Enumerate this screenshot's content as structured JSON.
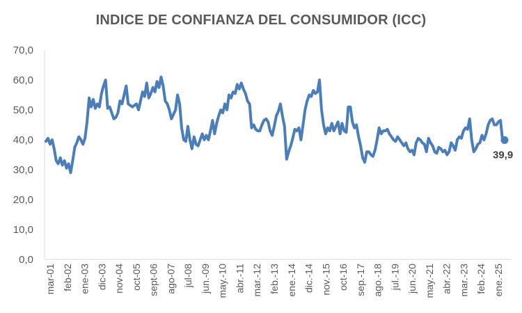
{
  "chart_data": {
    "type": "line",
    "title": "INDICE DE CONFIANZA DEL CONSUMIDOR (ICC)",
    "xlabel": "",
    "ylabel": "",
    "ylim": [
      0,
      70
    ],
    "y_ticks": [
      "0,0",
      "10,0",
      "20,0",
      "30,0",
      "40,0",
      "50,0",
      "60,0",
      "70,0"
    ],
    "x_tick_labels": [
      "mar-01",
      "feb-02",
      "ene-03",
      "dic-03",
      "nov-04",
      "oct-05",
      "sept-06",
      "ago-07",
      "jul-08",
      "jun.-09",
      "may.-10",
      "abr.-11",
      "mar.-12",
      "feb.-13",
      "ene.-14",
      "dic.-14",
      "nov.-15",
      "oct-16",
      "sep.-17",
      "ago.-18",
      "jul.-19",
      "jun.-20",
      "may.-21",
      "abr.-22",
      "mar.-23",
      "feb.-24",
      "ene.-25"
    ],
    "grid": false,
    "line_color": "#4A7EBB",
    "series": [
      {
        "values": [
          39.5,
          40.5,
          38.5,
          40.0,
          37.0,
          33.0,
          32.0,
          34.0,
          31.5,
          33.0,
          30.5,
          32.0,
          29.0,
          33.0,
          37.5,
          39.0,
          41.0,
          40.0,
          38.5,
          40.5,
          46.0,
          54.0,
          51.0,
          53.5,
          50.5,
          52.0,
          51.0,
          55.5,
          58.0,
          60.0,
          50.5,
          51.0,
          49.0,
          47.0,
          47.5,
          49.0,
          53.0,
          52.0,
          55.0,
          58.0,
          52.0,
          51.5,
          51.0,
          51.5,
          52.0,
          50.0,
          53.0,
          56.0,
          54.5,
          59.0,
          54.0,
          55.5,
          57.5,
          56.0,
          59.5,
          57.5,
          61.0,
          58.0,
          53.0,
          52.0,
          50.0,
          47.0,
          48.5,
          50.0,
          55.0,
          52.0,
          44.0,
          40.0,
          39.5,
          44.5,
          40.0,
          37.0,
          41.0,
          38.5,
          38.0,
          40.0,
          42.0,
          40.0,
          41.5,
          40.0,
          43.0,
          46.5,
          42.0,
          45.5,
          48.0,
          50.0,
          49.0,
          52.0,
          50.0,
          55.0,
          54.0,
          56.0,
          55.5,
          58.5,
          57.0,
          59.0,
          57.0,
          55.5,
          53.0,
          52.0,
          44.0,
          45.0,
          43.5,
          43.0,
          43.0,
          45.0,
          46.5,
          47.0,
          46.0,
          43.0,
          41.5,
          44.5,
          48.0,
          49.5,
          52.0,
          48.0,
          44.5,
          33.5,
          36.0,
          38.0,
          40.5,
          43.5,
          43.0,
          44.0,
          40.0,
          45.0,
          50.0,
          53.0,
          55.0,
          54.5,
          56.5,
          55.5,
          56.0,
          60.0,
          50.0,
          45.0,
          42.0,
          44.0,
          43.0,
          45.5,
          43.0,
          44.5,
          46.0,
          42.0,
          45.5,
          43.0,
          42.5,
          51.0,
          51.0,
          46.0,
          44.0,
          45.0,
          41.0,
          38.0,
          34.0,
          32.5,
          36.0,
          36.0,
          35.0,
          34.5,
          36.5,
          40.0,
          44.0,
          42.0,
          43.0,
          43.0,
          43.5,
          42.0,
          41.0,
          40.0,
          39.5,
          41.0,
          40.0,
          39.0,
          38.0,
          39.0,
          37.0,
          36.0,
          36.5,
          35.0,
          39.0,
          40.5,
          40.0,
          39.0,
          38.5,
          36.0,
          40.5,
          39.0,
          38.0,
          36.0,
          35.5,
          37.5,
          37.0,
          36.0,
          36.5,
          35.0,
          36.0,
          39.0,
          38.0,
          36.5,
          40.0,
          41.0,
          40.5,
          43.0,
          44.0,
          43.5,
          47.0,
          40.0,
          36.0,
          37.0,
          38.5,
          39.0,
          41.5,
          40.0,
          42.0,
          45.0,
          46.5,
          47.0,
          45.0,
          45.0,
          46.0,
          46.5,
          40.0,
          39.9
        ]
      }
    ],
    "annotations": [
      {
        "text": "39,9",
        "target": "last_point"
      }
    ]
  }
}
